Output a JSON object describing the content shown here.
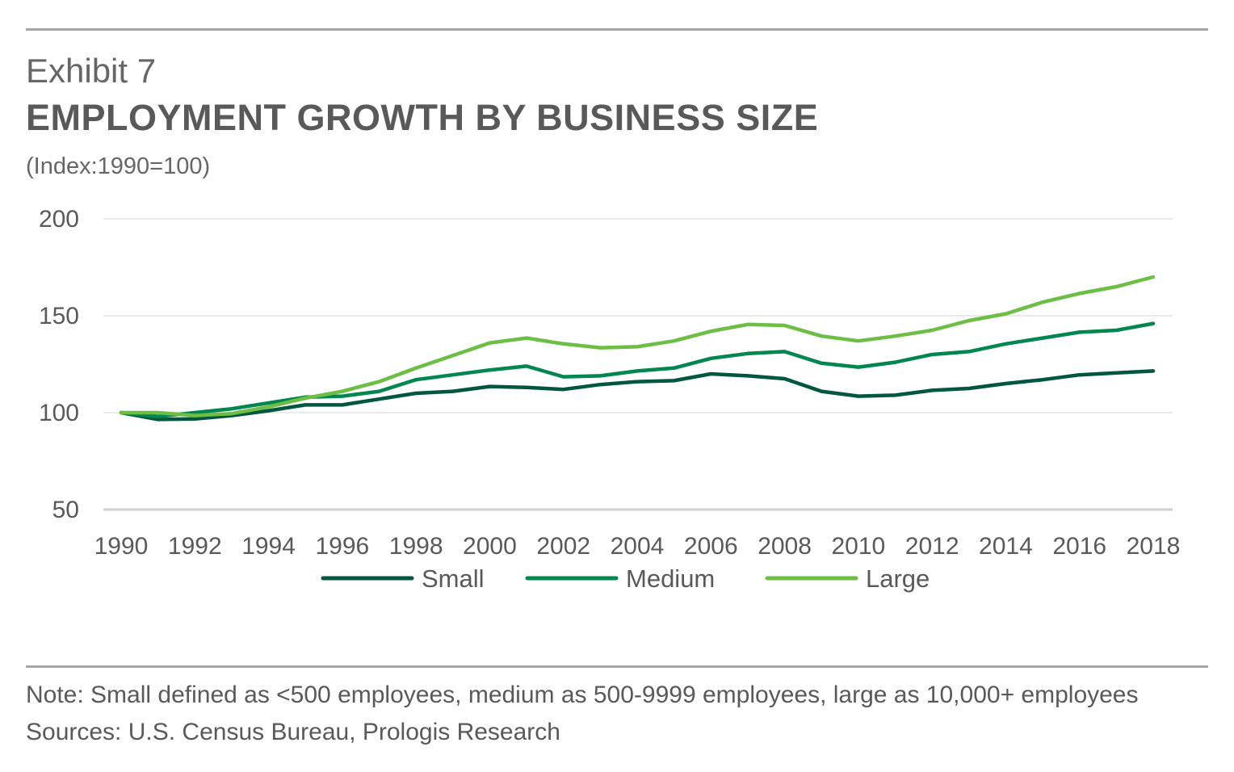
{
  "header": {
    "exhibit": "Exhibit 7",
    "title": "EMPLOYMENT GROWTH BY BUSINESS SIZE",
    "subtitle": "(Index:1990=100)"
  },
  "note": "Note: Small defined as <500 employees, medium as 500-9999 employees, large as 10,000+ employees  Sources: U.S. Census Bureau, Prologis Research",
  "chart_data": {
    "type": "line",
    "title": "EMPLOYMENT GROWTH BY BUSINESS SIZE",
    "ylabel": "(Index:1990=100)",
    "xlabel": "",
    "ylim": [
      50,
      200
    ],
    "yticks": [
      50,
      100,
      150,
      200
    ],
    "x": [
      1990,
      1991,
      1992,
      1993,
      1994,
      1995,
      1996,
      1997,
      1998,
      1999,
      2000,
      2001,
      2002,
      2003,
      2004,
      2005,
      2006,
      2007,
      2008,
      2009,
      2010,
      2011,
      2012,
      2013,
      2014,
      2015,
      2016,
      2017,
      2018
    ],
    "xtick_labels": [
      "1990",
      "1992",
      "1994",
      "1996",
      "1998",
      "2000",
      "2002",
      "2004",
      "2006",
      "2008",
      "2010",
      "2012",
      "2014",
      "2016",
      "2018"
    ],
    "grid": "horizontal",
    "legend_position": "bottom",
    "series": [
      {
        "name": "Small",
        "color": "#00573f",
        "values": [
          100,
          96.5,
          96.8,
          98.5,
          101,
          104,
          104,
          107,
          110,
          111,
          113.5,
          113,
          112,
          114.5,
          116,
          116.5,
          120,
          119,
          117.5,
          111,
          108.5,
          109,
          111.5,
          112.5,
          115,
          117,
          119.5,
          120.5,
          121.5
        ]
      },
      {
        "name": "Medium",
        "color": "#00874f",
        "values": [
          100,
          98,
          100,
          102,
          105,
          108,
          108.5,
          111,
          117,
          119.5,
          122,
          124,
          118.5,
          119,
          121.5,
          123,
          128,
          130.5,
          131.5,
          125.5,
          123.5,
          126,
          130,
          131.5,
          135.5,
          138.5,
          141.5,
          142.5,
          146
        ]
      },
      {
        "name": "Large",
        "color": "#6cbe45",
        "values": [
          100,
          100,
          98.5,
          99.5,
          103,
          107.5,
          111,
          116,
          123,
          129.5,
          136,
          138.5,
          135.5,
          133.5,
          134,
          137,
          142,
          145.5,
          145,
          139.5,
          137,
          139.5,
          142.5,
          147.5,
          151,
          157,
          161.5,
          165,
          170
        ]
      }
    ]
  }
}
